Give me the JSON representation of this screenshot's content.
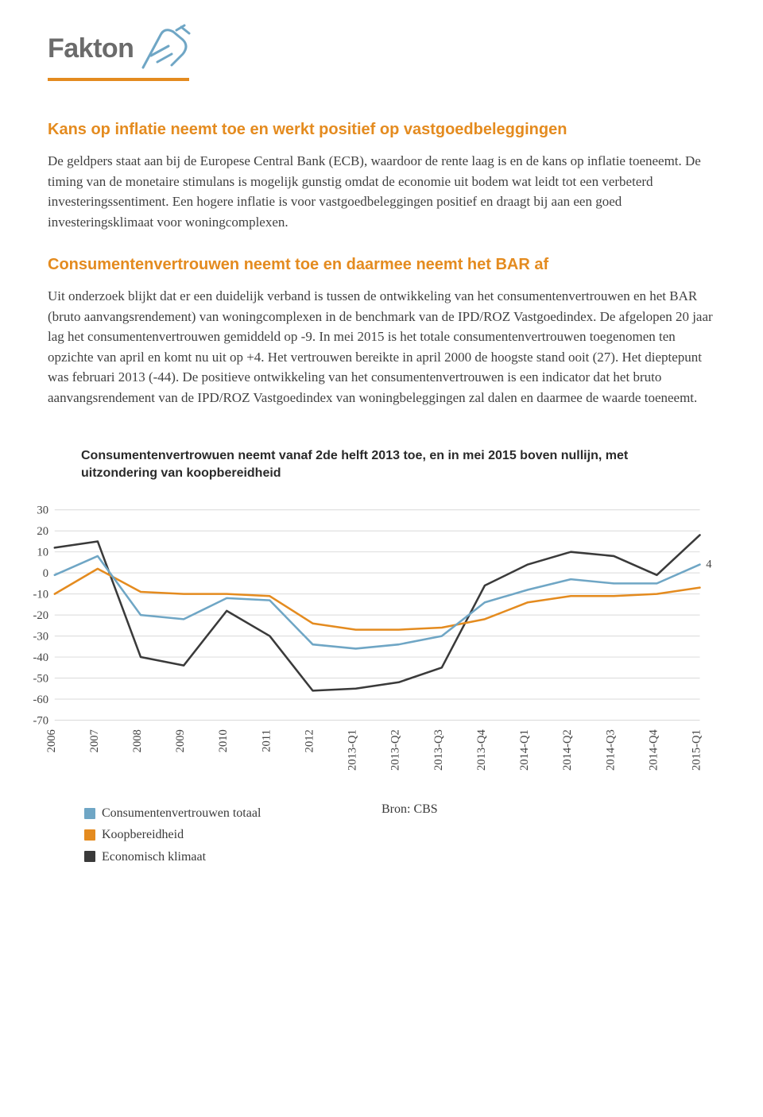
{
  "brand": {
    "name": "Fakton",
    "accent_color": "#e48b1f",
    "logo_stroke": "#6fa6c5",
    "text_color": "#6b6b6b"
  },
  "section1": {
    "heading": "Kans op inflatie neemt toe en werkt positief op vastgoedbeleggingen",
    "body": "De geldpers staat aan bij de Europese Central Bank (ECB), waardoor de rente laag is en de kans op inflatie toeneemt. De timing van de monetaire stimulans is mogelijk gunstig omdat de economie uit bodem wat leidt tot een verbeterd investeringssentiment. Een hogere inflatie is voor vastgoedbeleggingen positief en draagt bij aan een goed investeringsklimaat voor woningcomplexen."
  },
  "section2": {
    "heading": "Consumentenvertrouwen neemt toe en daarmee neemt het BAR af",
    "body": "Uit onderzoek blijkt dat er een duidelijk verband is tussen de ontwikkeling van het consumentenvertrouwen en het BAR (bruto aanvangsrendement) van woningcomplexen in de benchmark van de IPD/ROZ Vastgoedindex. De afgelopen 20 jaar lag het consumentenvertrouwen gemiddeld op -9. In mei 2015 is het totale consumentenvertrouwen toegenomen ten opzichte van april en komt nu uit op +4. Het vertrouwen bereikte in april 2000 de hoogste stand ooit (27). Het dieptepunt was februari 2013 (-44). De positieve ontwikkeling van het consumentenvertrouwen is een indicator dat het bruto aanvangsrendement van de IPD/ROZ Vastgoedindex van woningbeleggingen zal dalen en daarmee de waarde toeneemt."
  },
  "chart": {
    "caption": "Consumentenvertrowuen neemt vanaf 2de helft 2013 toe, en in mei 2015 boven nullijn, met uitzondering van koopbereidheid",
    "type": "line",
    "x_categories": [
      "2006",
      "2007",
      "2008",
      "2009",
      "2010",
      "2011",
      "2012",
      "2013-Q1",
      "2013-Q2",
      "2013-Q3",
      "2013-Q4",
      "2014-Q1",
      "2014-Q2",
      "2014-Q3",
      "2014-Q4",
      "2015-Q1"
    ],
    "ylim": [
      -70,
      30
    ],
    "ytick_step": 10,
    "series": {
      "totaal": {
        "label": "Consumentenvertrouwen totaal",
        "color": "#6fa6c5",
        "values": [
          -1,
          8,
          -20,
          -22,
          -12,
          -13,
          -34,
          -36,
          -34,
          -30,
          -14,
          -8,
          -3,
          -5,
          -5,
          4
        ]
      },
      "koop": {
        "label": "Koopbereidheid",
        "color": "#e48b1f",
        "values": [
          -10,
          2,
          -9,
          -10,
          -10,
          -11,
          -24,
          -27,
          -27,
          -26,
          -22,
          -14,
          -11,
          -11,
          -10,
          -7
        ]
      },
      "klimaat": {
        "label": "Economisch klimaat",
        "color": "#3a3a3a",
        "values": [
          12,
          15,
          -40,
          -44,
          -18,
          -30,
          -56,
          -55,
          -52,
          -45,
          -6,
          4,
          10,
          8,
          -1,
          18
        ]
      }
    },
    "callout_label": "4",
    "line_width": 2.6,
    "grid_color": "#d9d9d9",
    "background_color": "#ffffff",
    "axis_fontsize": 15,
    "source_label": "Bron: CBS"
  },
  "legend": {
    "items": [
      {
        "color": "#6fa6c5",
        "label": "Consumentenvertrouwen totaal"
      },
      {
        "color": "#e48b1f",
        "label": "Koopbereidheid"
      },
      {
        "color": "#3a3a3a",
        "label": "Economisch klimaat"
      }
    ]
  }
}
